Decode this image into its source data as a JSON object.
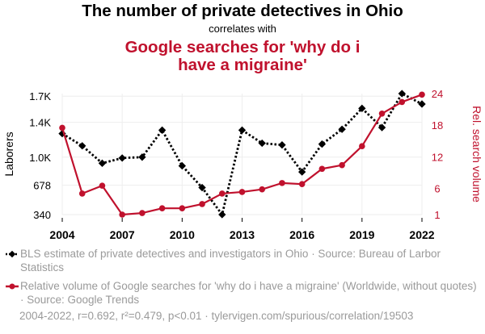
{
  "header": {
    "title": "The number of private detectives in Ohio",
    "subtitle": "correlates with",
    "title2": "Google searches for 'why do i have a migraine'"
  },
  "chart_data": {
    "type": "line",
    "x": [
      2004,
      2005,
      2006,
      2007,
      2008,
      2009,
      2010,
      2011,
      2012,
      2013,
      2014,
      2015,
      2016,
      2017,
      2018,
      2019,
      2020,
      2021,
      2022
    ],
    "x_ticks": [
      2004,
      2007,
      2010,
      2013,
      2016,
      2019,
      2022
    ],
    "xlim": [
      2004,
      2022
    ],
    "series": [
      {
        "name": "BLS estimate of private detectives and investigators in Ohio",
        "axis": "left",
        "color": "#000000",
        "style": "dotted",
        "marker": "diamond",
        "values": [
          1270,
          1130,
          930,
          990,
          1000,
          1310,
          900,
          650,
          340,
          1310,
          1160,
          1140,
          830,
          1150,
          1320,
          1560,
          1340,
          1730,
          1610
        ]
      },
      {
        "name": "Relative volume of Google searches for 'why do i have a migraine'",
        "axis": "right",
        "color": "#c0112d",
        "style": "solid",
        "marker": "circle",
        "values": [
          17.5,
          5,
          6.5,
          1,
          1.3,
          2.2,
          2.2,
          3,
          5,
          5.3,
          5.8,
          7,
          6.8,
          9.7,
          10.4,
          14,
          20.2,
          22.4,
          23.8
        ]
      }
    ],
    "y_left": {
      "label": "Laborers",
      "ticks": [
        340,
        678,
        1000,
        1400,
        1700
      ],
      "tick_labels": [
        "340",
        "678",
        "1.0K",
        "1.4K",
        "1.7K"
      ],
      "lim": [
        340,
        1730
      ]
    },
    "y_right": {
      "label": "Rel. search volume",
      "ticks": [
        1,
        6,
        12,
        18,
        24
      ],
      "tick_labels": [
        "1",
        "6",
        "12",
        "18",
        "24"
      ],
      "lim": [
        1,
        24
      ]
    },
    "grid": true
  },
  "legend": {
    "item1": "BLS estimate of private detectives and investigators in Ohio · Source: Bureau of Larbor Statistics",
    "item2": "Relative volume of Google searches for 'why do i have a migraine' (Worldwide, without quotes) · Source: Google Trends"
  },
  "footer": "2004-2022, r=0.692, r²=0.479, p<0.01 · tylervigen.com/spurious/correlation/19503",
  "colors": {
    "red": "#c0112d",
    "black": "#000000",
    "grid": "#eeeeee",
    "muted": "#9a9a9a"
  }
}
